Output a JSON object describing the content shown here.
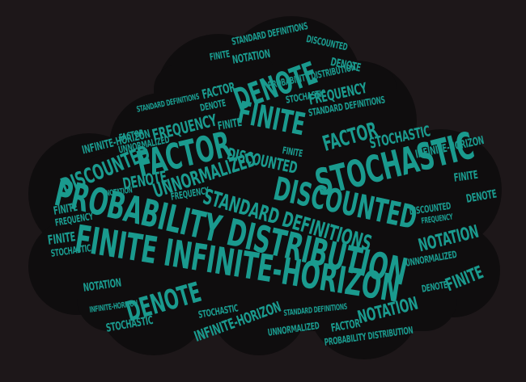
{
  "colors": {
    "background": "#1d1719",
    "cloud": "#0f0d0e",
    "word": "#1a9a8e"
  },
  "words": {
    "probability_distribution": "PROBABILITY DISTRIBUTION",
    "finite_infinite_horizon": "FINITE INFINITE-HORIZON",
    "stochastic": "STOCHASTIC",
    "discounted": "DISCOUNTED",
    "standard_definitions": "STANDARD DEFINITIONS",
    "denote": "DENOTE",
    "factor": "FACTOR",
    "finite": "FINITE",
    "unnormalized": "UNNORMALIZED",
    "frequency": "FREQUENCY",
    "notation": "NOTATION",
    "infinite_horizon": "INFINITE-HORIZON"
  }
}
